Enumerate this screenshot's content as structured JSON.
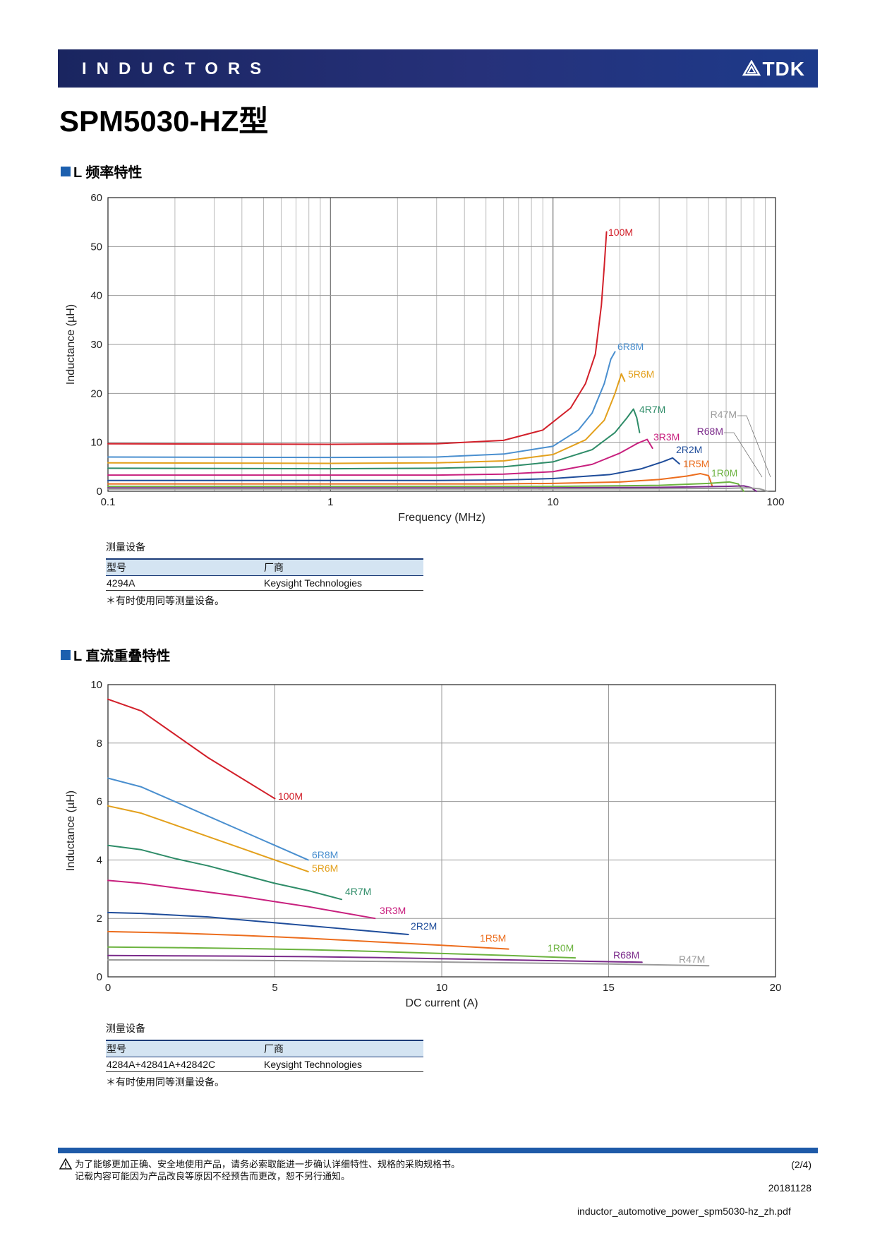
{
  "header": {
    "banner": "INDUCTORS",
    "brand": "TDK"
  },
  "title": "SPM5030-HZ型",
  "sections": [
    {
      "title": "L 频率特性"
    },
    {
      "title": "L 直流重叠特性"
    }
  ],
  "equipment": [
    {
      "caption": "测量设备",
      "headers": [
        "型号",
        "厂商"
      ],
      "row": [
        "4294A",
        "Keysight Technologies"
      ],
      "note": "＊有时使用同等测量设备。"
    },
    {
      "caption": "测量设备",
      "headers": [
        "型号",
        "厂商"
      ],
      "row": [
        "4284A+42841A+42842C",
        "Keysight Technologies"
      ],
      "note": "＊有时使用同等测量设备。"
    }
  ],
  "footer": {
    "note1": "为了能够更加正确、安全地使用产品，请务必索取能进一步确认详细特性、规格的采购规格书。",
    "note2": "记载内容可能因为产品改良等原因不经预告而更改，恕不另行通知。",
    "page": "(2/4)",
    "date": "20181128",
    "doc": "inductor_automotive_power_spm5030-hz_zh.pdf"
  },
  "chart_data": [
    {
      "type": "line",
      "title": "L 频率特性",
      "xlabel": "Frequency (MHz)",
      "ylabel": "Inductance (µH)",
      "xscale": "log",
      "xlim": [
        0.1,
        100
      ],
      "ylim": [
        0,
        60
      ],
      "xticks": [
        0.1,
        1,
        10,
        100
      ],
      "xtick_labels": [
        "0.1",
        "1",
        "10",
        "100"
      ],
      "yticks": [
        0,
        10,
        20,
        30,
        40,
        50,
        60
      ],
      "grid": true,
      "series": [
        {
          "name": "100M",
          "color": "#d2202a",
          "x": [
            0.1,
            1,
            3,
            6,
            9,
            12,
            14,
            15.5,
            16.5,
            17,
            17.4
          ],
          "y": [
            9.7,
            9.6,
            9.7,
            10.4,
            12.5,
            17,
            22,
            28,
            38,
            46,
            53
          ]
        },
        {
          "name": "6R8M",
          "color": "#4a8fcf",
          "x": [
            0.1,
            1,
            3,
            6,
            10,
            13,
            15,
            17,
            18.2,
            19
          ],
          "y": [
            7.0,
            6.9,
            7.0,
            7.6,
            9.2,
            12.5,
            16,
            22,
            27,
            28.5
          ]
        },
        {
          "name": "5R6M",
          "color": "#e3a01c",
          "x": [
            0.1,
            1,
            3,
            6,
            10,
            14,
            17,
            19,
            20.3,
            21
          ],
          "y": [
            5.8,
            5.7,
            5.8,
            6.2,
            7.5,
            10.5,
            14.5,
            20,
            24,
            22.5
          ]
        },
        {
          "name": "4R7M",
          "color": "#2e8c68",
          "x": [
            0.1,
            1,
            3,
            6,
            10,
            15,
            19,
            21.5,
            23,
            23.8,
            24.5
          ],
          "y": [
            4.7,
            4.6,
            4.7,
            5.0,
            6.0,
            8.5,
            12,
            15,
            16.8,
            15,
            12
          ]
        },
        {
          "name": "3R3M",
          "color": "#c8207e",
          "x": [
            0.1,
            1,
            3,
            6,
            10,
            15,
            20,
            24,
            26.5,
            28
          ],
          "y": [
            3.3,
            3.3,
            3.3,
            3.5,
            4.0,
            5.5,
            7.8,
            9.8,
            10.6,
            8.8
          ]
        },
        {
          "name": "2R2M",
          "color": "#1e4c9a",
          "x": [
            0.1,
            1,
            3,
            6,
            10,
            18,
            25,
            31,
            34.5,
            37
          ],
          "y": [
            2.2,
            2.2,
            2.2,
            2.3,
            2.6,
            3.4,
            4.6,
            6.0,
            6.8,
            5.6
          ]
        },
        {
          "name": "1R5M",
          "color": "#ec6d1d",
          "x": [
            0.1,
            1,
            5,
            10,
            20,
            30,
            40,
            46,
            50,
            52
          ],
          "y": [
            1.5,
            1.5,
            1.5,
            1.6,
            1.9,
            2.4,
            3.1,
            3.6,
            3.2,
            1.0
          ]
        },
        {
          "name": "1R0M",
          "color": "#6cb33f",
          "x": [
            0.1,
            1,
            5,
            10,
            30,
            50,
            62,
            68,
            72
          ],
          "y": [
            1.0,
            1.0,
            1.0,
            1.0,
            1.2,
            1.6,
            1.9,
            1.5,
            0.0
          ]
        },
        {
          "name": "R68M",
          "color": "#7a2a8a",
          "x": [
            0.1,
            1,
            5,
            10,
            30,
            60,
            72,
            78,
            82
          ],
          "y": [
            0.68,
            0.68,
            0.68,
            0.7,
            0.8,
            1.0,
            1.1,
            0.7,
            0.0
          ]
        },
        {
          "name": "R47M",
          "color": "#9a9a9a",
          "x": [
            0.1,
            1,
            5,
            10,
            30,
            60,
            75,
            85,
            92
          ],
          "y": [
            0.47,
            0.47,
            0.47,
            0.48,
            0.52,
            0.6,
            0.7,
            0.5,
            0.0
          ]
        }
      ]
    },
    {
      "type": "line",
      "title": "L 直流重叠特性",
      "xlabel": "DC current (A)",
      "ylabel": "Inductance (µH)",
      "xlim": [
        0,
        20
      ],
      "ylim": [
        0,
        10
      ],
      "xticks": [
        0,
        5,
        10,
        15,
        20
      ],
      "yticks": [
        0,
        2,
        4,
        6,
        8,
        10
      ],
      "grid": true,
      "series": [
        {
          "name": "100M",
          "color": "#d2202a",
          "x": [
            0,
            1,
            2,
            3,
            4,
            5
          ],
          "y": [
            9.5,
            9.1,
            8.3,
            7.5,
            6.8,
            6.1
          ]
        },
        {
          "name": "6R8M",
          "color": "#4a8fcf",
          "x": [
            0,
            1,
            2,
            3,
            4,
            5,
            6
          ],
          "y": [
            6.8,
            6.5,
            6.0,
            5.5,
            5.0,
            4.5,
            4.0
          ]
        },
        {
          "name": "5R6M",
          "color": "#e3a01c",
          "x": [
            0,
            1,
            2,
            3,
            4,
            5,
            6
          ],
          "y": [
            5.85,
            5.6,
            5.2,
            4.8,
            4.4,
            4.0,
            3.6
          ]
        },
        {
          "name": "4R7M",
          "color": "#2e8c68",
          "x": [
            0,
            1,
            2,
            3,
            4,
            5,
            6,
            7
          ],
          "y": [
            4.5,
            4.35,
            4.05,
            3.8,
            3.5,
            3.2,
            2.95,
            2.65
          ]
        },
        {
          "name": "3R3M",
          "color": "#c8207e",
          "x": [
            0,
            1,
            2,
            4,
            6,
            8
          ],
          "y": [
            3.3,
            3.2,
            3.05,
            2.75,
            2.4,
            2.0
          ]
        },
        {
          "name": "2R2M",
          "color": "#1e4c9a",
          "x": [
            0,
            1,
            3,
            5,
            7,
            9
          ],
          "y": [
            2.2,
            2.17,
            2.05,
            1.85,
            1.65,
            1.45
          ]
        },
        {
          "name": "1R5M",
          "color": "#ec6d1d",
          "x": [
            0,
            2,
            4,
            6,
            8,
            10,
            12
          ],
          "y": [
            1.55,
            1.5,
            1.42,
            1.32,
            1.2,
            1.08,
            0.95
          ]
        },
        {
          "name": "1R0M",
          "color": "#6cb33f",
          "x": [
            0,
            2,
            4,
            6,
            8,
            10,
            12,
            14
          ],
          "y": [
            1.02,
            1.0,
            0.97,
            0.93,
            0.87,
            0.8,
            0.73,
            0.65
          ]
        },
        {
          "name": "R68M",
          "color": "#7a2a8a",
          "x": [
            0,
            2,
            4,
            6,
            8,
            10,
            12,
            14,
            16
          ],
          "y": [
            0.73,
            0.72,
            0.71,
            0.69,
            0.66,
            0.62,
            0.58,
            0.54,
            0.5
          ]
        },
        {
          "name": "R47M",
          "color": "#9a9a9a",
          "x": [
            0,
            3,
            6,
            9,
            12,
            15,
            18
          ],
          "y": [
            0.58,
            0.57,
            0.55,
            0.52,
            0.48,
            0.44,
            0.38
          ]
        }
      ]
    }
  ]
}
